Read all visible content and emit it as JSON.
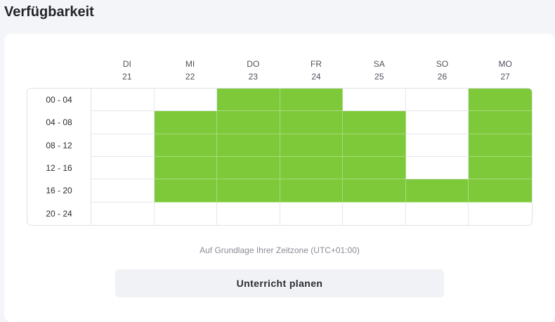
{
  "title": "Verfügbarkeit",
  "days": [
    {
      "name": "DI",
      "date": "21"
    },
    {
      "name": "MI",
      "date": "22"
    },
    {
      "name": "DO",
      "date": "23"
    },
    {
      "name": "FR",
      "date": "24"
    },
    {
      "name": "SA",
      "date": "25"
    },
    {
      "name": "SO",
      "date": "26"
    },
    {
      "name": "MO",
      "date": "27"
    }
  ],
  "time_slots": [
    "00 - 04",
    "04 - 08",
    "08 - 12",
    "12 - 16",
    "16 - 20",
    "20 - 24"
  ],
  "availability": [
    [
      false,
      false,
      true,
      true,
      false,
      false,
      true
    ],
    [
      false,
      true,
      true,
      true,
      true,
      false,
      true
    ],
    [
      false,
      true,
      true,
      true,
      true,
      false,
      true
    ],
    [
      false,
      true,
      true,
      true,
      true,
      false,
      true
    ],
    [
      false,
      true,
      true,
      true,
      true,
      true,
      true
    ],
    [
      false,
      false,
      false,
      false,
      false,
      false,
      false
    ]
  ],
  "colors": {
    "available": "#7dc93a",
    "unavailable": "#ffffff"
  },
  "timezone_note": "Auf Grundlage Ihrer Zeitzone (UTC+01:00)",
  "schedule_button_label": "Unterricht planen"
}
